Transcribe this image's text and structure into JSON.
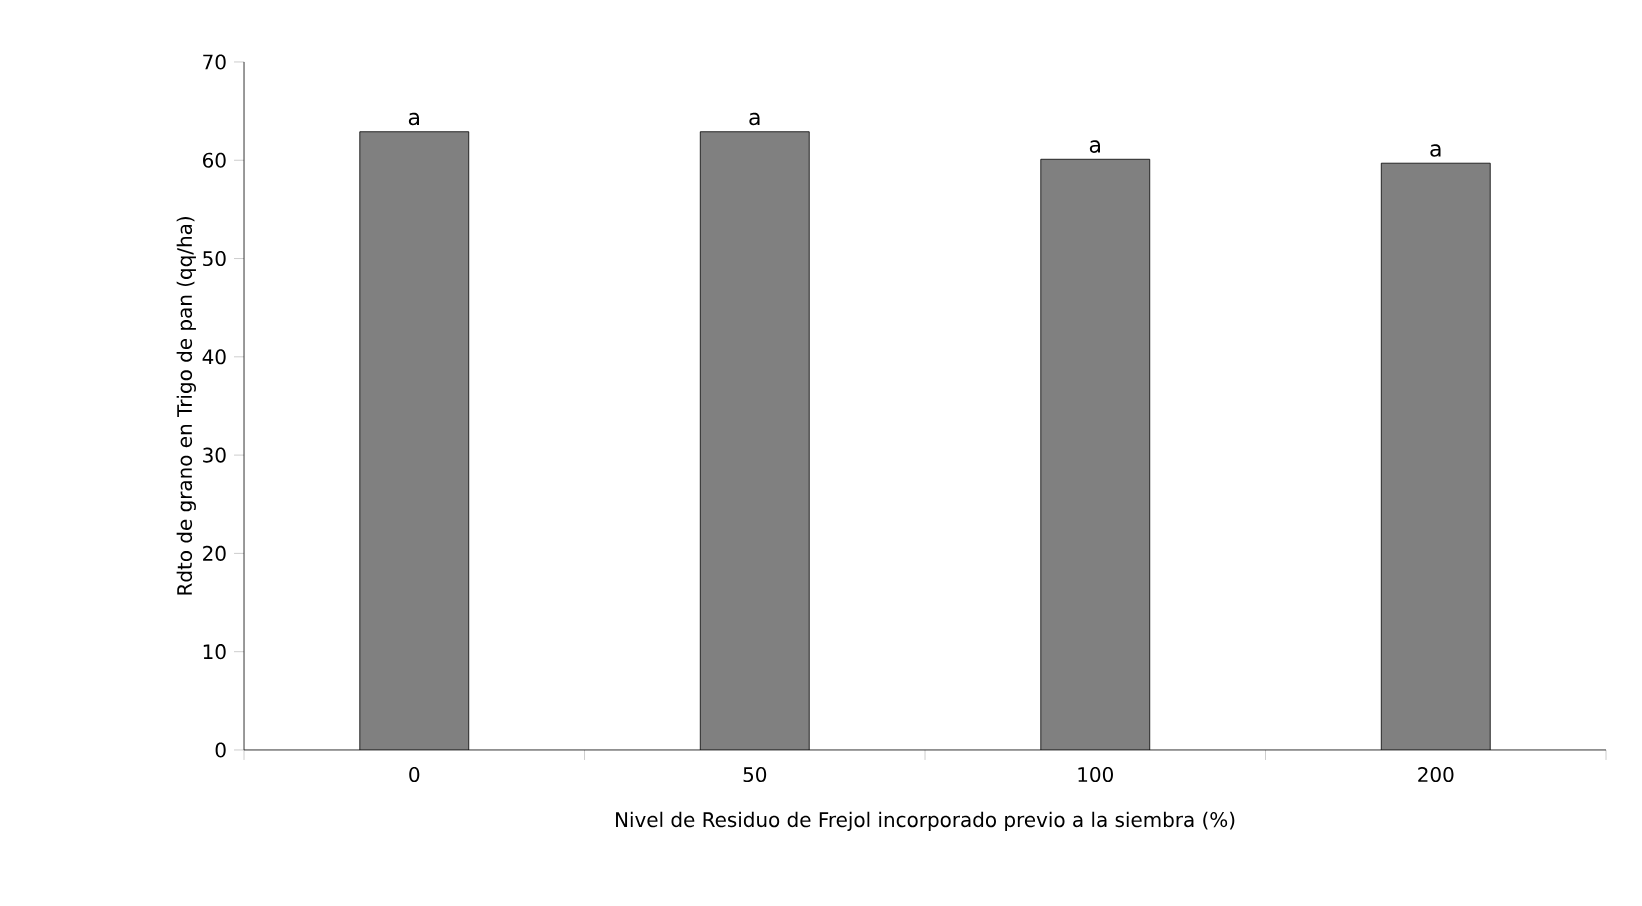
{
  "chart_data": {
    "type": "bar",
    "xlabel": "Nivel de Residuo de Frejol incorporado previo a la siembra (%)",
    "ylabel": "Rdto de grano en Trigo de pan (qq/ha)",
    "categories": [
      "0",
      "50",
      "100",
      "200"
    ],
    "values": [
      62.9,
      62.9,
      60.1,
      59.7
    ],
    "color": "#808080",
    "ylim": [
      0,
      70
    ],
    "yticks": [
      0,
      10,
      20,
      30,
      40,
      50,
      60,
      70
    ],
    "grid": false,
    "annotations": [
      {
        "text": "a",
        "x": "0",
        "y": 62.9
      },
      {
        "text": "a",
        "x": "50",
        "y": 62.9
      },
      {
        "text": "a",
        "x": "100",
        "y": 60.1
      },
      {
        "text": "a",
        "x": "200",
        "y": 59.7
      }
    ]
  }
}
